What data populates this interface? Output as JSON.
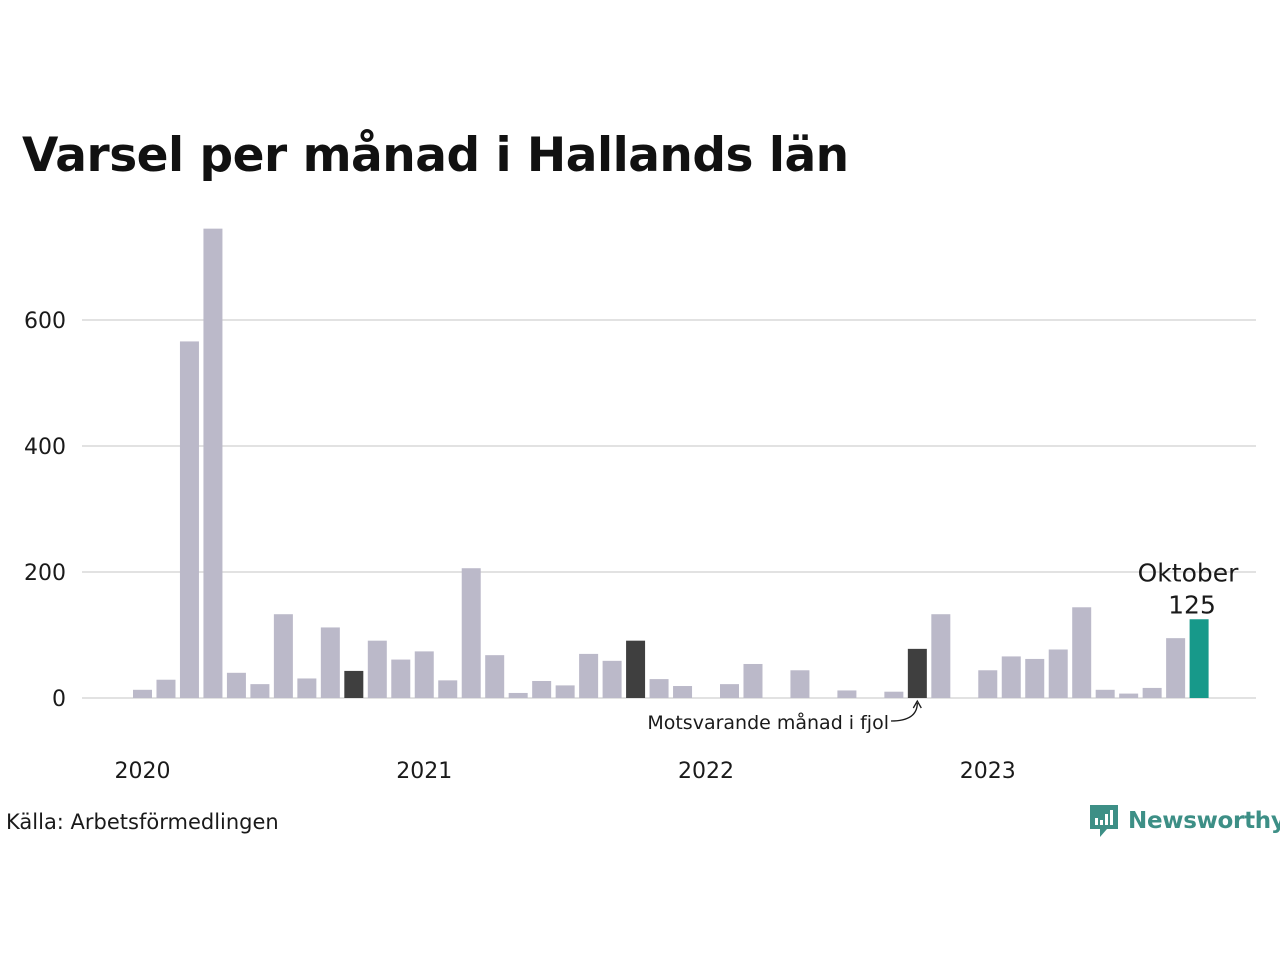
{
  "title": "Varsel per månad i Hallands län",
  "source": "Källa: Arbetsförmedlingen",
  "brand": {
    "name": "Newsworthy",
    "icon": "newsworthy-logo-icon",
    "color": "#3d8f86"
  },
  "colors": {
    "default": "#bbb9c9",
    "highlight": "#3f3f3f",
    "current": "#17998a",
    "grid": "#e2e2e2"
  },
  "chart_data": {
    "type": "bar",
    "title": "Varsel per månad i Hallands län",
    "xlabel": "",
    "ylabel": "",
    "ylim": [
      0,
      740
    ],
    "yticks": [
      0,
      200,
      400,
      600
    ],
    "grid": true,
    "year_labels": [
      {
        "label": "2020",
        "index": 0
      },
      {
        "label": "2021",
        "index": 12
      },
      {
        "label": "2022",
        "index": 24
      },
      {
        "label": "2023",
        "index": 36
      }
    ],
    "values": [
      13,
      29,
      566,
      745,
      40,
      22,
      133,
      31,
      112,
      43,
      91,
      61,
      74,
      28,
      206,
      68,
      8,
      27,
      20,
      70,
      59,
      91,
      30,
      19,
      0,
      22,
      54,
      0,
      44,
      0,
      12,
      0,
      10,
      78,
      133,
      0,
      44,
      66,
      62,
      77,
      144,
      13,
      7,
      16,
      95,
      125
    ],
    "highlight_indices": [
      9,
      21,
      33
    ],
    "current_index": 45,
    "annotations": {
      "current_label": "Oktober",
      "current_value": "125",
      "last_year_label": "Motsvarande månad i fjol"
    }
  }
}
